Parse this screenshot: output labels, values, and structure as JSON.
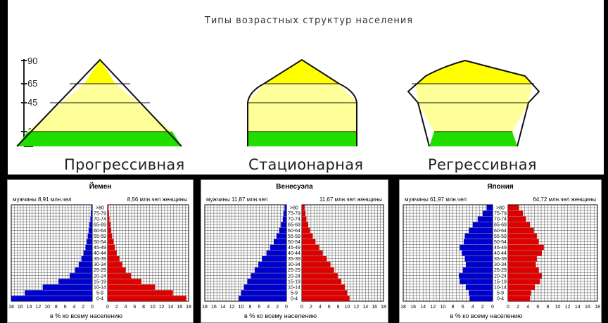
{
  "top": {
    "title": "Типы возрастных структур населения",
    "y_ticks": [
      "90",
      "65",
      "45",
      "15"
    ],
    "types": [
      {
        "label": "Прогрессивная",
        "shape": "triangle"
      },
      {
        "label": "Стационарная",
        "shape": "bell"
      },
      {
        "label": "Регрессивная",
        "shape": "urn"
      }
    ],
    "colors": {
      "young": "#22dd00",
      "adult": "#ffff88",
      "old": "#ffff00"
    }
  },
  "chart_data": [
    {
      "type": "bar",
      "title": "Йемен",
      "male_label": "мужчины 8,91 млн.чел",
      "female_label": "8,56 млн.чел женщины",
      "xlabel": "в % ко всему населению",
      "x_ticks": [
        "18",
        "16",
        "14",
        "12",
        "10",
        "8",
        "6",
        "4",
        "2",
        "0",
        "0",
        "2",
        "4",
        "6",
        "8",
        "10",
        "12",
        "14",
        "16",
        "18"
      ],
      "categories": [
        ">80",
        "75-79",
        "70-74",
        "65-69",
        "60-64",
        "55-59",
        "50-54",
        "45-49",
        "40-44",
        "35-39",
        "30-34",
        "25-29",
        "20-24",
        "15-19",
        "10-14",
        "5-9",
        "0-4"
      ],
      "series": [
        {
          "name": "мужчины",
          "color": "#0000cc",
          "values": [
            0.2,
            0.3,
            0.4,
            0.6,
            0.8,
            1.0,
            1.2,
            1.5,
            1.9,
            2.4,
            3.0,
            3.8,
            5.0,
            7.5,
            11,
            15,
            18
          ]
        },
        {
          "name": "женщины",
          "color": "#dd0000",
          "values": [
            0.2,
            0.3,
            0.4,
            0.6,
            0.8,
            1.0,
            1.3,
            1.6,
            2.0,
            2.6,
            3.2,
            4.0,
            5.2,
            7.5,
            10.5,
            14.5,
            17.5
          ]
        }
      ]
    },
    {
      "type": "bar",
      "title": "Венесуэла",
      "male_label": "мужчины 11,87 млн.чел",
      "female_label": "11,67 млн.чел женщины",
      "xlabel": "в % ко всему населению",
      "x_ticks": [
        "18",
        "16",
        "14",
        "12",
        "10",
        "8",
        "6",
        "4",
        "2",
        "0",
        "0",
        "2",
        "4",
        "6",
        "8",
        "10",
        "12",
        "14",
        "16",
        "18"
      ],
      "categories": [
        ">80",
        "75-79",
        "70-74",
        "65-69",
        "60-64",
        "55-59",
        "50-54",
        "45-49",
        "40-44",
        "35-39",
        "30-34",
        "25-29",
        "20-24",
        "15-19",
        "10-14",
        "5-9",
        "0-4"
      ],
      "series": [
        {
          "name": "мужчины",
          "color": "#0000cc",
          "values": [
            0.4,
            0.6,
            0.8,
            1.2,
            1.6,
            2.2,
            2.8,
            3.6,
            4.4,
            5.4,
            6.2,
            7.0,
            7.8,
            8.6,
            9.4,
            10.0,
            10.5
          ]
        },
        {
          "name": "женщины",
          "color": "#dd0000",
          "values": [
            0.6,
            0.8,
            1.0,
            1.4,
            1.8,
            2.4,
            3.0,
            3.8,
            4.6,
            5.5,
            6.3,
            7.1,
            7.9,
            8.7,
            9.5,
            10.0,
            10.5
          ]
        }
      ]
    },
    {
      "type": "bar",
      "title": "Япония",
      "male_label": "мужчины 61,97 млн.чел",
      "female_label": "64,72 млн.чел женщины",
      "xlabel": "в % ко всему населению",
      "x_ticks": [
        "18",
        "16",
        "14",
        "12",
        "10",
        "8",
        "6",
        "4",
        "2",
        "0",
        "0",
        "2",
        "4",
        "6",
        "8",
        "10",
        "12",
        "14",
        "16",
        "18"
      ],
      "categories": [
        ">80",
        "75-79",
        "70-74",
        "65-69",
        "60-64",
        "55-59",
        "50-54",
        "45-49",
        "40-44",
        "35-39",
        "30-34",
        "25-29",
        "20-24",
        "15-19",
        "10-14",
        "5-9",
        "0-4"
      ],
      "series": [
        {
          "name": "мужчины",
          "color": "#0000cc",
          "values": [
            1.2,
            2.0,
            3.0,
            4.0,
            4.8,
            5.6,
            5.8,
            6.6,
            6.2,
            5.6,
            5.4,
            6.0,
            6.8,
            6.6,
            5.4,
            4.8,
            4.6
          ]
        },
        {
          "name": "женщины",
          "color": "#dd0000",
          "values": [
            2.2,
            3.0,
            3.6,
            4.4,
            5.2,
            5.8,
            6.2,
            7.2,
            6.8,
            5.8,
            5.6,
            6.2,
            6.8,
            6.4,
            5.4,
            4.6,
            4.4
          ]
        }
      ]
    }
  ]
}
